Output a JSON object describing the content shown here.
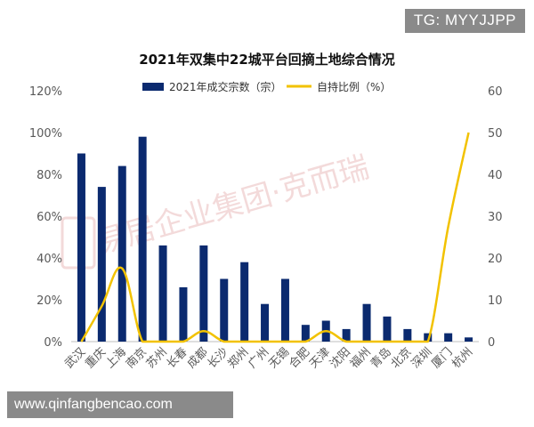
{
  "tag_text": "TG: MYYJJPP",
  "url_text": "www.qinfangbencao.com",
  "watermark_text": "易居企业集团·克而瑞",
  "chart_data": {
    "type": "bar+line",
    "title": "2021年双集中22城平台回摘土地综合情况",
    "categories": [
      "武汉",
      "重庆",
      "上海",
      "南京",
      "苏州",
      "长春",
      "成都",
      "长沙",
      "郑州",
      "广州",
      "无锡",
      "合肥",
      "天津",
      "沈阳",
      "福州",
      "青岛",
      "北京",
      "深圳",
      "厦门",
      "杭州"
    ],
    "series": [
      {
        "name": "2021年成交宗数（宗）",
        "type": "bar",
        "axis": "right",
        "color": "#0b2a6f",
        "values": [
          45,
          37,
          42,
          49,
          23,
          13,
          23,
          15,
          19,
          9,
          15,
          4,
          5,
          3,
          9,
          6,
          3,
          2,
          2,
          1
        ]
      },
      {
        "name": "自持比例（%）",
        "type": "line",
        "axis": "left",
        "color": "#f2c200",
        "values": [
          0,
          17,
          35,
          0,
          0,
          0,
          5,
          0,
          0,
          0,
          0,
          0,
          5,
          0,
          0,
          0,
          0,
          0,
          55,
          100
        ]
      }
    ],
    "y_left": {
      "ticks": [
        "0%",
        "20%",
        "40%",
        "60%",
        "80%",
        "100%",
        "120%"
      ],
      "range": [
        0,
        120
      ]
    },
    "y_right": {
      "ticks": [
        "0",
        "10",
        "20",
        "30",
        "40",
        "50",
        "60"
      ],
      "range": [
        0,
        60
      ]
    },
    "legend_position": "top",
    "grid": false
  }
}
